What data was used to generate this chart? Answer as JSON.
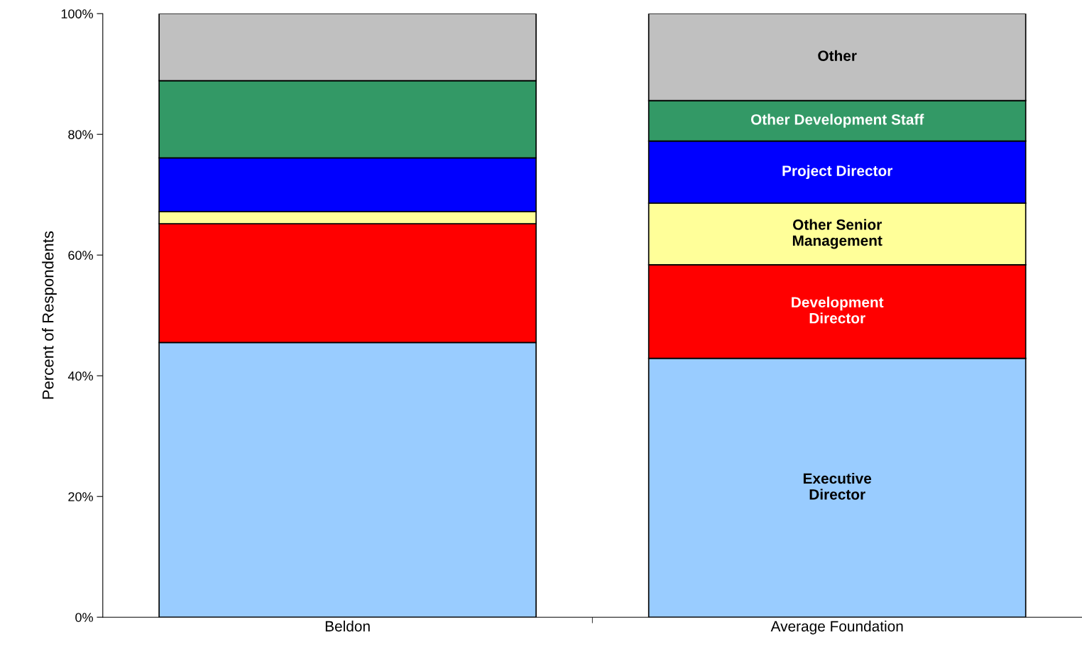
{
  "chart_data": {
    "type": "bar",
    "stacked": true,
    "ylabel": "Percent of Respondents",
    "categories": [
      "Beldon",
      "Average Foundation"
    ],
    "series": [
      {
        "name": "Executive\nDirector",
        "color": "#99ccff",
        "values": [
          45.5,
          42.9
        ]
      },
      {
        "name": "Development\nDirector",
        "color": "#ff0000",
        "values": [
          19.7,
          15.5
        ]
      },
      {
        "name": "Other Senior\nManagement",
        "color": "#ffff99",
        "values": [
          2.0,
          10.2
        ]
      },
      {
        "name": "Project Director",
        "color": "#0000ff",
        "values": [
          8.9,
          10.3
        ]
      },
      {
        "name": "Other Development Staff",
        "color": "#339966",
        "values": [
          12.8,
          6.7
        ]
      },
      {
        "name": "Other",
        "color": "#c0c0c0",
        "values": [
          11.1,
          14.4
        ]
      }
    ],
    "ylim": [
      0,
      100
    ],
    "yticks": [
      {
        "value": 0,
        "label": "0%"
      },
      {
        "value": 20,
        "label": "20%"
      },
      {
        "value": 40,
        "label": "40%"
      },
      {
        "value": 60,
        "label": "60%"
      },
      {
        "value": 80,
        "label": "80%"
      },
      {
        "value": 100,
        "label": "100%"
      }
    ],
    "grid": false,
    "legend": false
  }
}
